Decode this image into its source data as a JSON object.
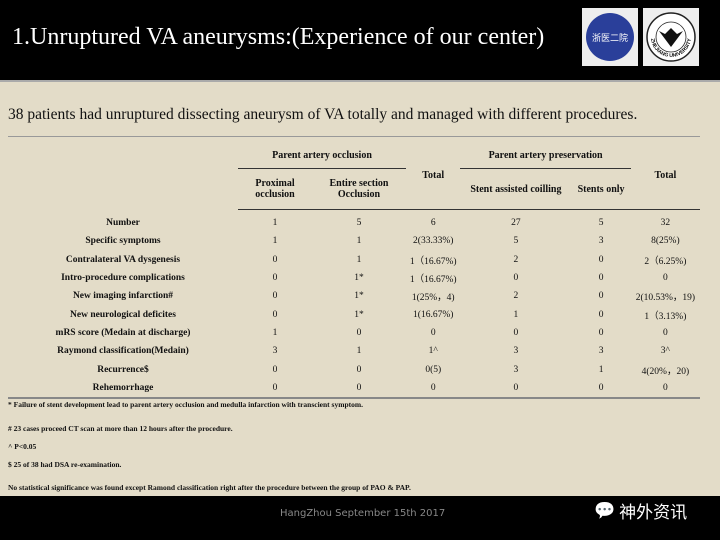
{
  "header": {
    "title": "1.Unruptured VA aneurysms:(Experience of our center)",
    "logo1_text": "浙医二院",
    "logo2_text": "ZHEJIANG UNIVERSITY"
  },
  "subtitle": "38 patients had unruptured dissecting aneurysm of  VA totally and managed with different procedures.",
  "table": {
    "group1": "Parent artery occlusion",
    "group2": "Parent artery preservation",
    "total": "Total",
    "cols": [
      "Proximal occlusion",
      "Entire section Occlusion",
      "Stent assisted coilling",
      "Stents only"
    ],
    "rows": [
      {
        "label": "Number",
        "v": [
          "1",
          "5",
          "6",
          "27",
          "5",
          "32"
        ]
      },
      {
        "label": "Specific symptoms",
        "v": [
          "1",
          "1",
          "2(33.33%)",
          "5",
          "3",
          "8(25%)"
        ]
      },
      {
        "label": "Contralateral VA dysgenesis",
        "v": [
          "0",
          "1",
          "1（16.67%)",
          "2",
          "0",
          "2（6.25%)"
        ]
      },
      {
        "label": "Intro-procedure complications",
        "v": [
          "0",
          "1*",
          "1（16.67%)",
          "0",
          "0",
          "0"
        ]
      },
      {
        "label": "New imaging infarction#",
        "v": [
          "0",
          "1*",
          "1(25%，4)",
          "2",
          "0",
          "2(10.53%，19)"
        ]
      },
      {
        "label": "New neurological deficites",
        "v": [
          "0",
          "1*",
          "1(16.67%)",
          "1",
          "0",
          "1（3.13%)"
        ]
      },
      {
        "label": "mRS score (Medain at discharge)",
        "v": [
          "1",
          "0",
          "0",
          "0",
          "0",
          "0"
        ]
      },
      {
        "label": "Raymond classification(Medain)",
        "v": [
          "3",
          "1",
          "1^",
          "3",
          "3",
          "3^"
        ]
      },
      {
        "label": "Recurrence$",
        "v": [
          "0",
          "0",
          "0(5)",
          "3",
          "1",
          "4(20%，20)"
        ]
      },
      {
        "label": "Rehemorrhage",
        "v": [
          "0",
          "0",
          "0",
          "0",
          "0",
          "0"
        ]
      }
    ]
  },
  "notes": [
    "* Failure of stent development lead to parent artery occlusion and medulla infarction with transcient symptom.",
    "# 23 cases proceed CT scan at more than 12 hours after the procedure.",
    "^ P<0.05",
    "$ 25 of 38 had DSA re-examination.",
    "No statistical significance was found except Ramond classification right after the procedure between the group of PAO & PAP."
  ],
  "footer": {
    "text": "HangZhou September 15th 2017",
    "watermark": "神外资讯"
  }
}
